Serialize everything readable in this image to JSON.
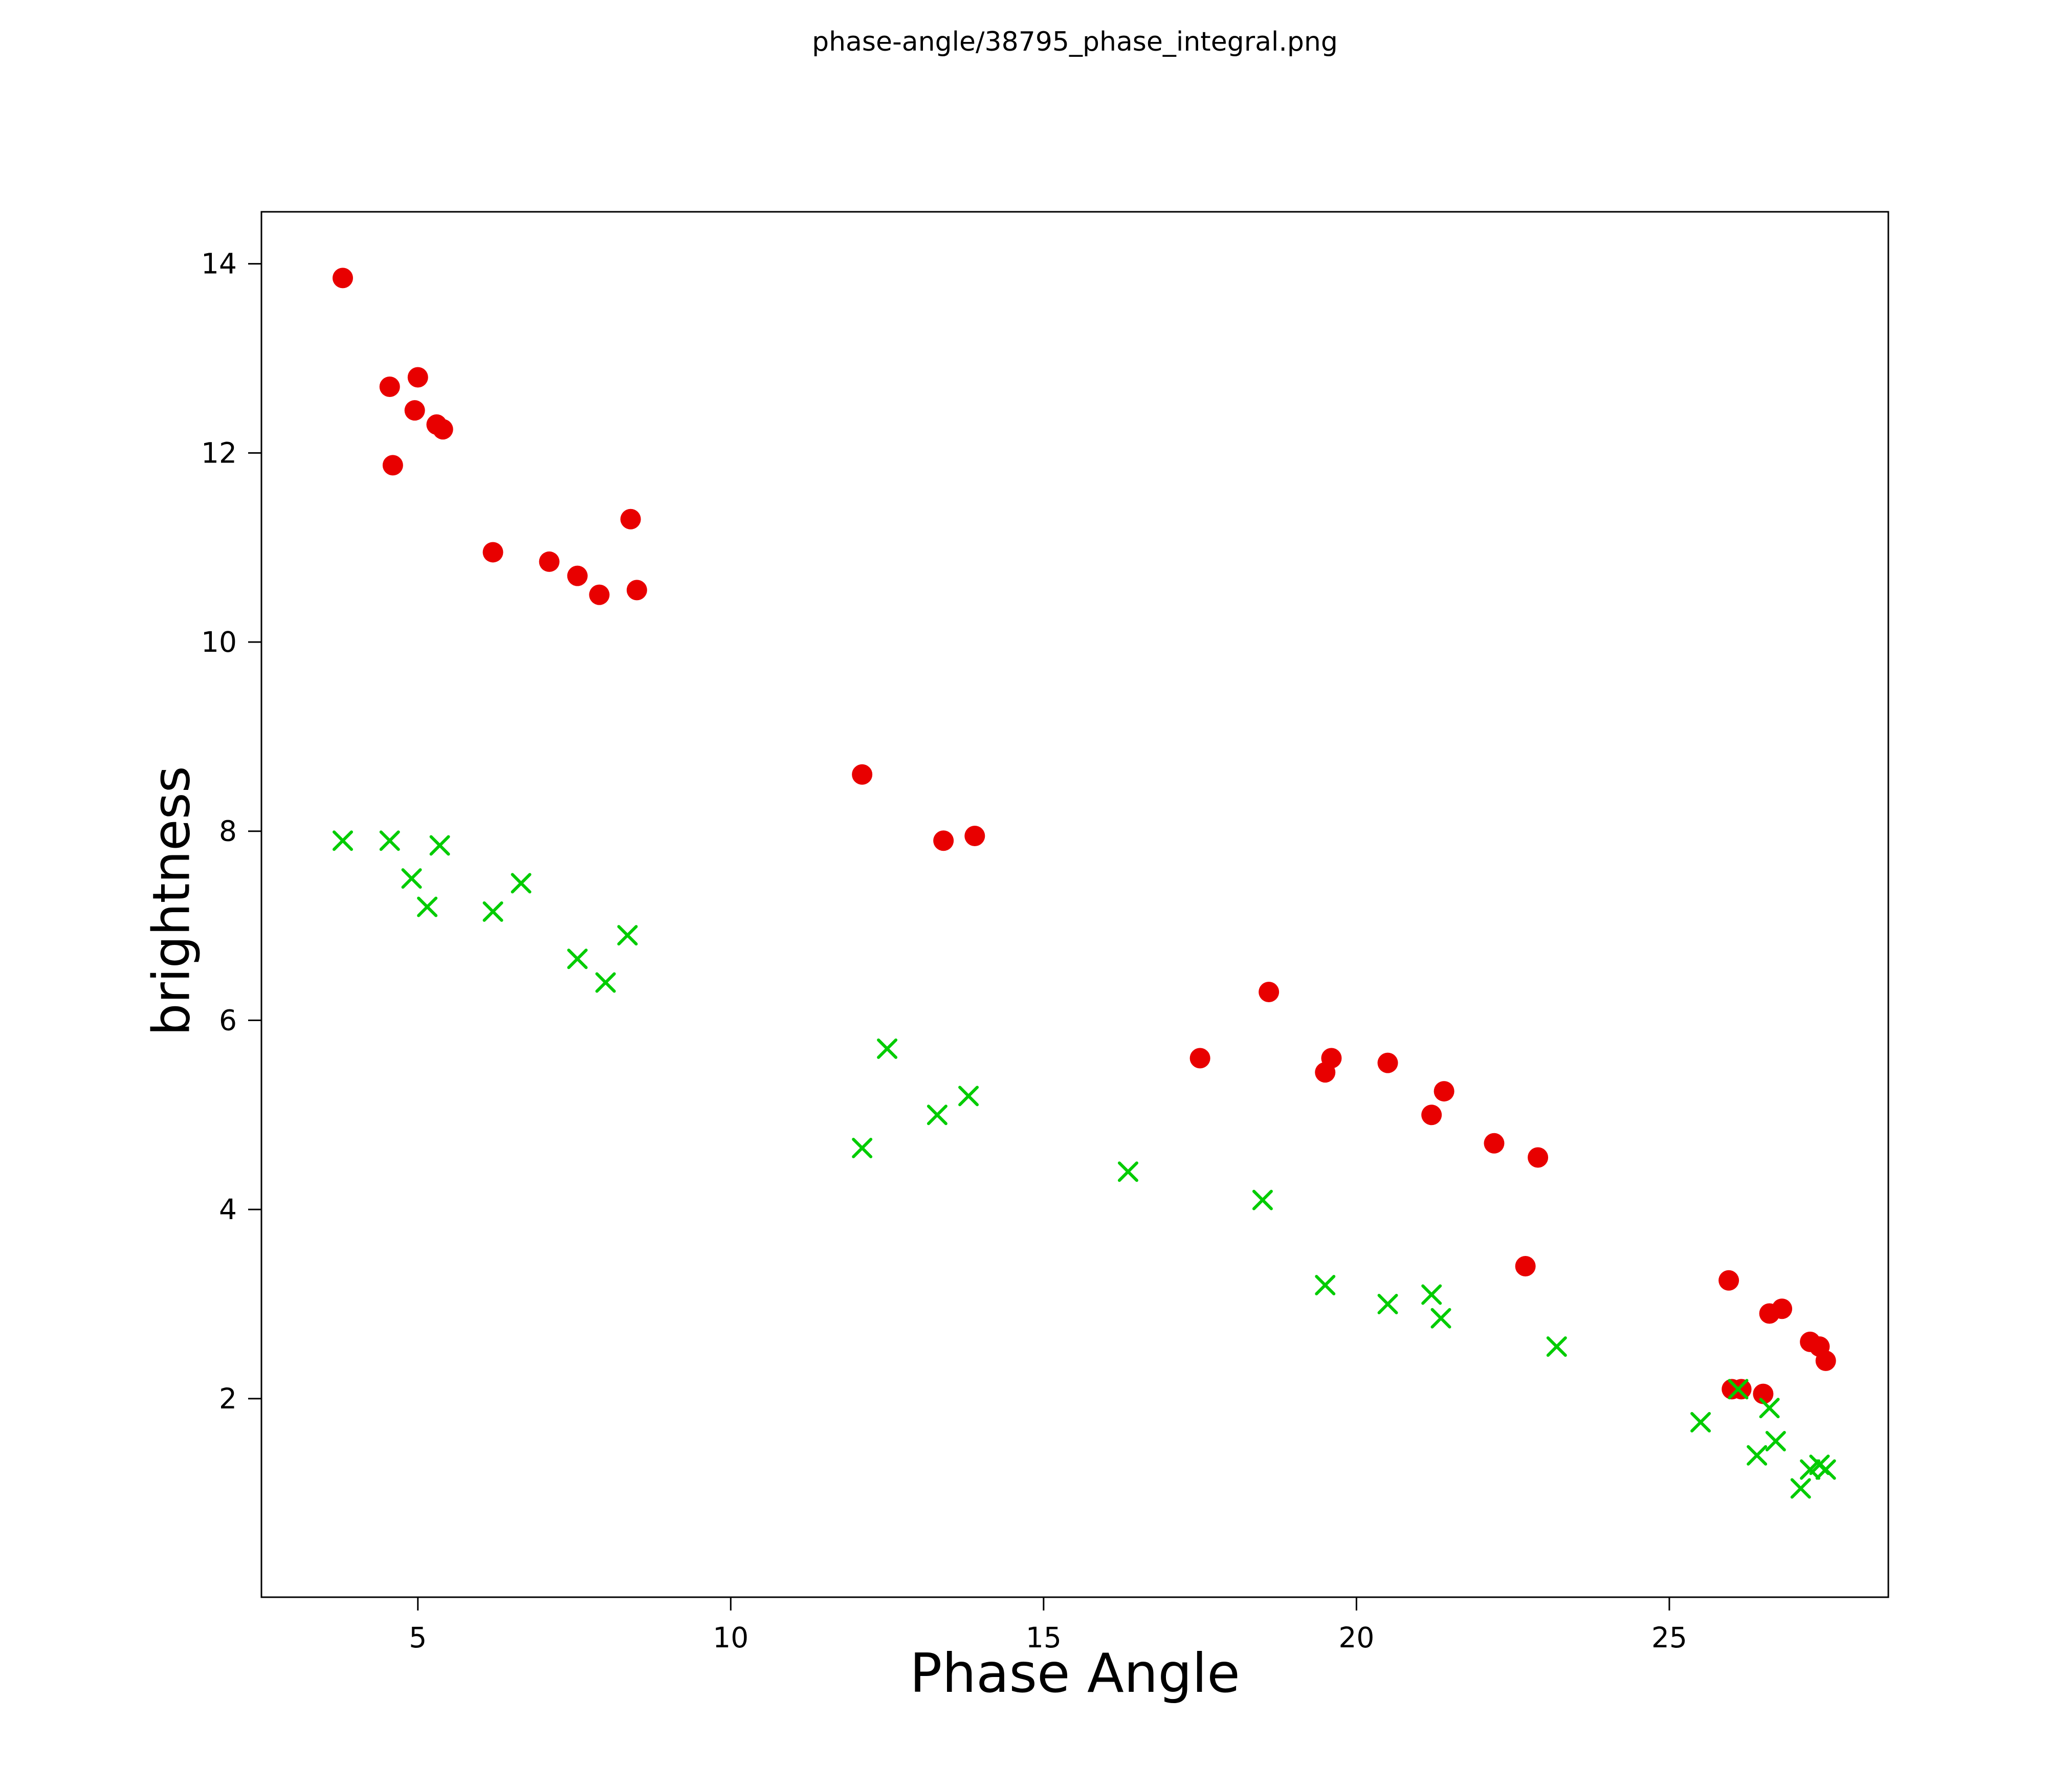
{
  "chart_data": {
    "type": "scatter",
    "title": "phase-angle/38795_phase_integral.png",
    "xlabel": "Phase Angle",
    "ylabel": "brightness",
    "xlim": [
      2.5,
      28.5
    ],
    "ylim": [
      -0.1,
      14.55
    ],
    "xticks": [
      5,
      10,
      15,
      20,
      25
    ],
    "yticks": [
      2,
      4,
      6,
      8,
      10,
      12,
      14
    ],
    "grid": false,
    "legend": "none",
    "axis_color": "#000000",
    "background_color": "#ffffff",
    "series": [
      {
        "name": "red-circles",
        "marker": "circle",
        "color": "#e80000",
        "points": [
          [
            3.8,
            13.85
          ],
          [
            4.55,
            12.7
          ],
          [
            4.6,
            11.87
          ],
          [
            4.95,
            12.45
          ],
          [
            5.0,
            12.8
          ],
          [
            5.3,
            12.3
          ],
          [
            5.4,
            12.25
          ],
          [
            6.2,
            10.95
          ],
          [
            7.1,
            10.85
          ],
          [
            7.55,
            10.7
          ],
          [
            7.9,
            10.5
          ],
          [
            8.4,
            11.3
          ],
          [
            8.5,
            10.55
          ],
          [
            12.1,
            8.6
          ],
          [
            13.4,
            7.9
          ],
          [
            13.9,
            7.95
          ],
          [
            17.5,
            5.6
          ],
          [
            18.6,
            6.3
          ],
          [
            19.5,
            5.45
          ],
          [
            19.6,
            5.6
          ],
          [
            20.5,
            5.55
          ],
          [
            21.2,
            5.0
          ],
          [
            21.4,
            5.25
          ],
          [
            22.2,
            4.7
          ],
          [
            22.7,
            3.4
          ],
          [
            22.9,
            4.55
          ],
          [
            25.95,
            3.25
          ],
          [
            26.0,
            2.1
          ],
          [
            26.15,
            2.1
          ],
          [
            26.5,
            2.05
          ],
          [
            26.6,
            2.9
          ],
          [
            26.8,
            2.95
          ],
          [
            27.25,
            2.6
          ],
          [
            27.4,
            2.55
          ],
          [
            27.5,
            2.4
          ]
        ]
      },
      {
        "name": "green-crosses",
        "marker": "x",
        "color": "#00cc00",
        "points": [
          [
            3.8,
            7.9
          ],
          [
            4.55,
            7.9
          ],
          [
            4.9,
            7.5
          ],
          [
            5.15,
            7.2
          ],
          [
            5.35,
            7.85
          ],
          [
            6.2,
            7.15
          ],
          [
            6.65,
            7.45
          ],
          [
            7.55,
            6.65
          ],
          [
            8.0,
            6.4
          ],
          [
            8.35,
            6.9
          ],
          [
            12.1,
            4.65
          ],
          [
            12.5,
            5.7
          ],
          [
            13.3,
            5.0
          ],
          [
            13.8,
            5.2
          ],
          [
            16.35,
            4.4
          ],
          [
            18.5,
            4.1
          ],
          [
            19.5,
            3.2
          ],
          [
            20.5,
            3.0
          ],
          [
            21.2,
            3.1
          ],
          [
            21.35,
            2.85
          ],
          [
            23.2,
            2.55
          ],
          [
            25.5,
            1.75
          ],
          [
            26.1,
            2.1
          ],
          [
            26.4,
            1.4
          ],
          [
            26.6,
            1.9
          ],
          [
            26.7,
            1.55
          ],
          [
            27.1,
            1.05
          ],
          [
            27.25,
            1.25
          ],
          [
            27.4,
            1.3
          ],
          [
            27.5,
            1.25
          ]
        ]
      }
    ]
  }
}
